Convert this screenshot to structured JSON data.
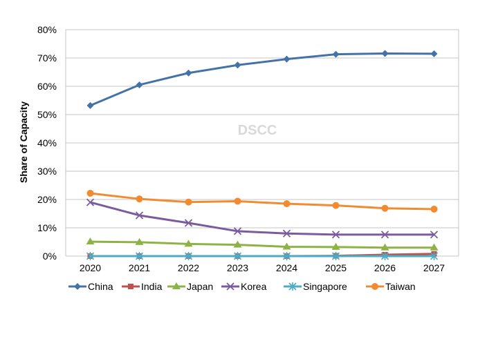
{
  "chart_data": {
    "type": "line",
    "ylabel": "Share of Capacity",
    "watermark": "DSCC",
    "x": [
      "2020",
      "2021",
      "2022",
      "2023",
      "2024",
      "2025",
      "2026",
      "2027"
    ],
    "ylim": [
      0,
      80
    ],
    "yticks": [
      0,
      10,
      20,
      30,
      40,
      50,
      60,
      70,
      80
    ],
    "ytick_labels": [
      "0%",
      "10%",
      "20%",
      "30%",
      "40%",
      "50%",
      "60%",
      "70%",
      "80%"
    ],
    "grid": true,
    "legend_position": "bottom",
    "series": [
      {
        "name": "China",
        "color": "#4472a8",
        "marker": "diamond",
        "values": [
          53.2,
          60.5,
          64.7,
          67.5,
          69.6,
          71.3,
          71.6,
          71.5
        ]
      },
      {
        "name": "India",
        "color": "#c0504d",
        "marker": "square",
        "values": [
          0,
          0,
          0,
          0,
          0,
          0.1,
          0.5,
          0.8
        ]
      },
      {
        "name": "Japan",
        "color": "#8db346",
        "marker": "triangle",
        "values": [
          5.1,
          4.9,
          4.3,
          4.0,
          3.3,
          3.2,
          3.0,
          3.0
        ]
      },
      {
        "name": "Korea",
        "color": "#7a5b9d",
        "marker": "x",
        "values": [
          19.0,
          14.4,
          11.7,
          8.8,
          8.0,
          7.6,
          7.6,
          7.6
        ]
      },
      {
        "name": "Singapore",
        "color": "#4bacc6",
        "marker": "star",
        "values": [
          0,
          0,
          0,
          0,
          0,
          0,
          0,
          0
        ]
      },
      {
        "name": "Taiwan",
        "color": "#f28a30",
        "marker": "circle",
        "values": [
          22.2,
          20.2,
          19.1,
          19.4,
          18.5,
          17.9,
          16.9,
          16.6
        ]
      }
    ]
  }
}
